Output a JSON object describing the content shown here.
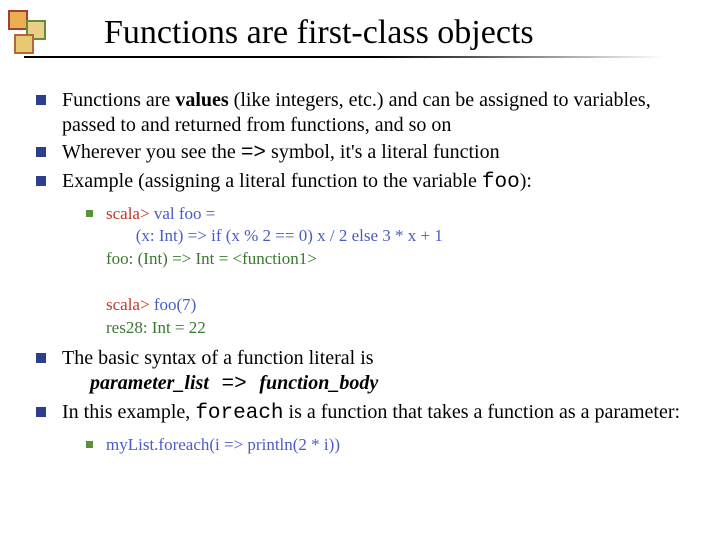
{
  "colors": {
    "bullet_outer": "#2d3e8f",
    "bullet_inner": "#5b8f3a",
    "code_blue": "#4a5cc4",
    "code_green": "#3a7a2f",
    "code_red": "#c0392b",
    "title": "#000000",
    "logo_border_a": "#a83c3c",
    "logo_fill_a": "#e8b050",
    "logo_border_b": "#6a8a3a",
    "logo_fill_b": "#e8d088",
    "logo_border_c": "#b06838",
    "logo_fill_c": "#e8c870"
  },
  "title": "Functions are first-class objects",
  "bullets": [
    {
      "parts": [
        {
          "t": "Functions are ",
          "cls": ""
        },
        {
          "t": "values",
          "cls": "bold"
        },
        {
          "t": " (like integers, etc.) and can be assigned to variables, passed to and returned from functions, and so on",
          "cls": ""
        }
      ]
    },
    {
      "parts": [
        {
          "t": "Wherever you see the ",
          "cls": ""
        },
        {
          "t": "=>",
          "cls": "mono"
        },
        {
          "t": " symbol, it's a literal function",
          "cls": ""
        }
      ]
    },
    {
      "parts": [
        {
          "t": "Example (assigning a literal function to the variable ",
          "cls": ""
        },
        {
          "t": "foo",
          "cls": "mono"
        },
        {
          "t": "):",
          "cls": ""
        }
      ],
      "code": {
        "lines": [
          [
            {
              "t": "scala> ",
              "c": "code_red"
            },
            {
              "t": "val foo =",
              "c": "code_blue"
            }
          ],
          [
            {
              "t": "       ",
              "c": "code_blue"
            },
            {
              "t": "(x: Int) => if (x % 2 == 0) x / 2 else 3 * x + 1",
              "c": "code_blue"
            }
          ],
          [
            {
              "t": "foo: (Int) => Int = <function1>",
              "c": "code_green"
            }
          ],
          [
            {
              "t": " ",
              "c": "code_green"
            }
          ],
          [
            {
              "t": "scala> ",
              "c": "code_red"
            },
            {
              "t": "foo(7)",
              "c": "code_blue"
            }
          ],
          [
            {
              "t": "res28: Int = 22",
              "c": "code_green"
            }
          ]
        ]
      }
    },
    {
      "parts": [
        {
          "t": "The basic syntax of a function literal is",
          "cls": ""
        }
      ],
      "secondLine": [
        {
          "t": "parameter_list",
          "cls": "bold italic"
        },
        {
          "t": " => ",
          "cls": "mono"
        },
        {
          "t": "function_body",
          "cls": "bold italic"
        }
      ]
    },
    {
      "parts": [
        {
          "t": "In this example, ",
          "cls": ""
        },
        {
          "t": "foreach",
          "cls": "mono"
        },
        {
          "t": " is a function that takes a function as a parameter:",
          "cls": ""
        }
      ],
      "code": {
        "lines": [
          [
            {
              "t": "myList.foreach(i => println(2 * i))",
              "c": "code_blue"
            }
          ]
        ]
      }
    }
  ]
}
